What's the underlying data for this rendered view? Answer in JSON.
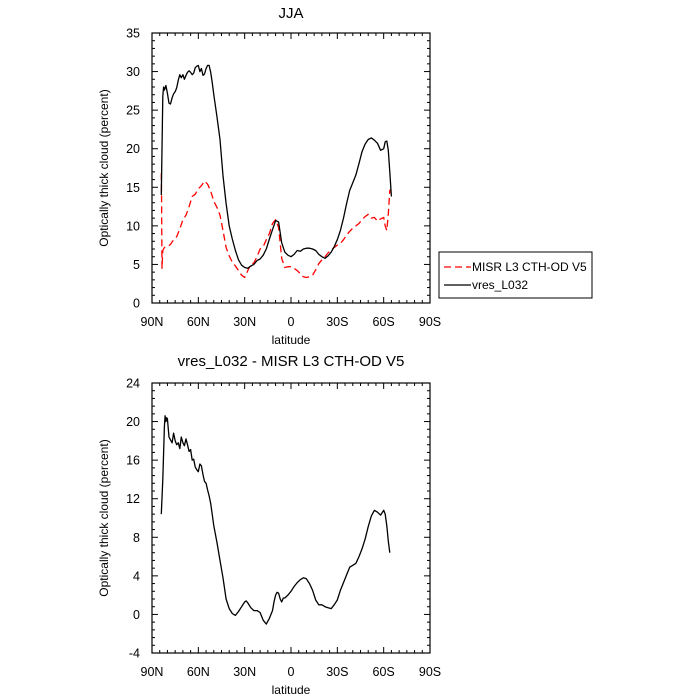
{
  "chart_data": [
    {
      "type": "line",
      "title": "JJA",
      "xlabel": "latitude",
      "ylabel": "Optically thick cloud (percent)",
      "xlim": [
        90,
        -90
      ],
      "ylim": [
        0,
        35
      ],
      "x_ticks": [
        90,
        60,
        30,
        0,
        -30,
        -60,
        -90
      ],
      "x_tick_labels": [
        "90N",
        "60N",
        "30N",
        "0",
        "30S",
        "60S",
        "90S"
      ],
      "y_ticks": [
        0,
        5,
        10,
        15,
        20,
        25,
        30,
        35
      ],
      "y_tick_labels": [
        "0",
        "5",
        "10",
        "15",
        "20",
        "25",
        "30",
        "35"
      ],
      "legend": "right",
      "series": [
        {
          "name": "MISR L3 CTH-OD V5",
          "color": "#ff0000",
          "dash": "dashed",
          "x": [
            84,
            83.8,
            83.5,
            83,
            82,
            80,
            78,
            76,
            74,
            72,
            70,
            68,
            66,
            64,
            62,
            60,
            58,
            56,
            54,
            52,
            50,
            48,
            46,
            44,
            42,
            40,
            38,
            36,
            34,
            32,
            30,
            28,
            26,
            24,
            22,
            20,
            18,
            16,
            14,
            12,
            10,
            8,
            6,
            4,
            2,
            0,
            -2,
            -4,
            -6,
            -8,
            -10,
            -12,
            -14,
            -16,
            -18,
            -20,
            -22,
            -24,
            -26,
            -28,
            -30,
            -32,
            -34,
            -36,
            -38,
            -40,
            -42,
            -44,
            -46,
            -48,
            -50,
            -52,
            -54,
            -56,
            -58,
            -60,
            -61,
            -62,
            -63,
            -64,
            -64.5
          ],
          "values": [
            16.8,
            13,
            4.5,
            6.8,
            7.2,
            7.3,
            7.6,
            8.2,
            8.6,
            9.6,
            10.8,
            11.4,
            12.5,
            13.8,
            14.1,
            14.8,
            15.2,
            15.8,
            15.4,
            14.5,
            13.2,
            12.4,
            11.4,
            9.4,
            7.2,
            6.1,
            5.3,
            4.8,
            4.2,
            3.6,
            3.3,
            4.2,
            5.0,
            5.2,
            6.0,
            7.0,
            7.3,
            8.2,
            9.0,
            10.3,
            10.8,
            9.8,
            5.8,
            4.6,
            4.7,
            4.7,
            4.5,
            4.2,
            3.8,
            3.4,
            3.3,
            3.4,
            3.6,
            4.3,
            5.1,
            5.6,
            6.0,
            6.5,
            6.9,
            7.2,
            7.5,
            7.7,
            8.2,
            8.8,
            9.3,
            9.7,
            10.0,
            10.3,
            10.8,
            11.2,
            11.5,
            11.0,
            11.1,
            10.6,
            10.9,
            11.1,
            10.0,
            9.4,
            11.5,
            14.6,
            14.7
          ]
        },
        {
          "name": "vres_L032",
          "color": "#000000",
          "dash": "solid",
          "x": [
            84,
            83.5,
            83,
            82.5,
            82,
            81,
            80,
            79,
            78,
            77,
            76,
            75,
            74,
            73,
            72,
            71,
            70,
            69,
            68,
            67,
            66,
            65,
            64,
            63,
            62,
            61,
            60,
            59,
            58,
            57,
            56,
            55,
            54,
            53,
            52,
            51,
            50,
            48,
            46,
            44,
            42,
            40,
            38,
            36,
            34,
            32,
            30,
            28,
            26,
            24,
            22,
            20,
            18,
            16,
            14,
            12,
            10,
            8,
            6,
            4,
            2,
            0,
            -2,
            -4,
            -6,
            -8,
            -10,
            -12,
            -14,
            -16,
            -18,
            -20,
            -22,
            -24,
            -26,
            -28,
            -30,
            -32,
            -34,
            -36,
            -38,
            -40,
            -42,
            -44,
            -46,
            -48,
            -50,
            -52,
            -54,
            -56,
            -58,
            -60,
            -61,
            -62,
            -63,
            -64,
            -65
          ],
          "values": [
            14.0,
            20,
            26.8,
            28,
            27.6,
            28.2,
            27.2,
            25.9,
            25.8,
            26.6,
            27.1,
            27.4,
            27.9,
            28.9,
            29.6,
            29.2,
            29.6,
            29.0,
            29.5,
            29.9,
            30.1,
            29.9,
            29.6,
            29.8,
            30.5,
            30.7,
            30.8,
            30.0,
            30.4,
            29.5,
            29.7,
            30.4,
            30.8,
            30.8,
            29.9,
            28.6,
            27.0,
            24.2,
            21.2,
            16.5,
            12.9,
            10.0,
            8.3,
            6.8,
            5.6,
            4.9,
            4.6,
            4.5,
            4.8,
            5.0,
            5.5,
            5.7,
            6.2,
            7.0,
            8.3,
            9.5,
            10.7,
            10.5,
            7.8,
            6.6,
            6.2,
            6.0,
            6.3,
            6.8,
            6.7,
            7.0,
            7.1,
            7.1,
            7.0,
            6.8,
            6.3,
            6.0,
            5.8,
            6.1,
            6.6,
            7.3,
            8.2,
            9.4,
            11.0,
            12.9,
            14.6,
            15.6,
            16.6,
            18.1,
            19.6,
            20.6,
            21.2,
            21.4,
            21.1,
            20.7,
            19.8,
            20.0,
            20.9,
            21.0,
            19.8,
            17.0,
            13.8
          ]
        }
      ]
    },
    {
      "type": "line",
      "title": "vres_L032 - MISR L3 CTH-OD V5",
      "xlabel": "latitude",
      "ylabel": "Optically thick cloud (percent)",
      "xlim": [
        90,
        -90
      ],
      "ylim": [
        -4,
        24
      ],
      "x_ticks": [
        90,
        60,
        30,
        0,
        -30,
        -60,
        -90
      ],
      "x_tick_labels": [
        "90N",
        "60N",
        "30N",
        "0",
        "30S",
        "60S",
        "90S"
      ],
      "y_ticks": [
        -4,
        0,
        4,
        8,
        12,
        16,
        20,
        24
      ],
      "y_tick_labels": [
        "-4",
        "0",
        "4",
        "8",
        "12",
        "16",
        "20",
        "24"
      ],
      "series": [
        {
          "name": "vres_L032 - MISR L3 CTH-OD V5",
          "color": "#000000",
          "dash": "solid",
          "x": [
            84,
            83,
            82,
            81.5,
            81,
            80.5,
            80,
            79,
            78,
            77,
            76,
            75,
            74,
            73,
            72,
            71,
            70,
            69,
            68,
            67,
            66,
            65,
            64,
            63,
            62,
            61,
            60,
            59,
            58,
            57,
            56,
            55,
            54,
            53,
            52,
            50,
            48,
            46,
            44,
            42,
            40,
            38,
            36,
            34,
            32,
            30,
            29,
            28,
            26,
            24,
            22,
            20,
            18,
            16,
            14,
            12,
            11,
            10,
            9,
            8,
            7,
            6,
            5,
            4,
            2,
            0,
            -2,
            -4,
            -6,
            -8,
            -10,
            -12,
            -14,
            -16,
            -18,
            -20,
            -22,
            -24,
            -26,
            -28,
            -30,
            -32,
            -34,
            -36,
            -38,
            -40,
            -42,
            -44,
            -46,
            -48,
            -50,
            -52,
            -54,
            -56,
            -58,
            -60,
            -61,
            -62,
            -63,
            -64
          ],
          "values": [
            10.4,
            14,
            19.5,
            20.6,
            20.0,
            20.4,
            20.3,
            18.4,
            18.1,
            17.8,
            18.8,
            18.0,
            17.6,
            17.8,
            17.2,
            18.4,
            17.8,
            17.5,
            18.2,
            17.6,
            16.9,
            17.1,
            16.0,
            16.1,
            15.3,
            15.0,
            14.8,
            15.6,
            15.4,
            14.5,
            13.8,
            13.6,
            12.9,
            12.3,
            11.5,
            9.2,
            7.5,
            5.6,
            3.8,
            1.6,
            0.6,
            0.1,
            -0.1,
            0.3,
            0.8,
            1.3,
            1.4,
            1.2,
            0.7,
            0.4,
            0.4,
            0.2,
            -0.6,
            -1.0,
            -0.4,
            0.4,
            1.3,
            2.0,
            2.3,
            2.2,
            1.6,
            1.3,
            1.7,
            1.7,
            2.0,
            2.4,
            2.9,
            3.3,
            3.6,
            3.8,
            3.7,
            3.2,
            2.5,
            1.5,
            1.0,
            1.0,
            0.8,
            0.7,
            0.6,
            1.0,
            1.5,
            2.5,
            3.3,
            4.1,
            4.9,
            5.1,
            5.3,
            6.0,
            6.8,
            7.8,
            9.1,
            10.2,
            10.8,
            10.6,
            10.3,
            10.8,
            10.4,
            9.2,
            7.6,
            6.4
          ]
        }
      ]
    }
  ]
}
